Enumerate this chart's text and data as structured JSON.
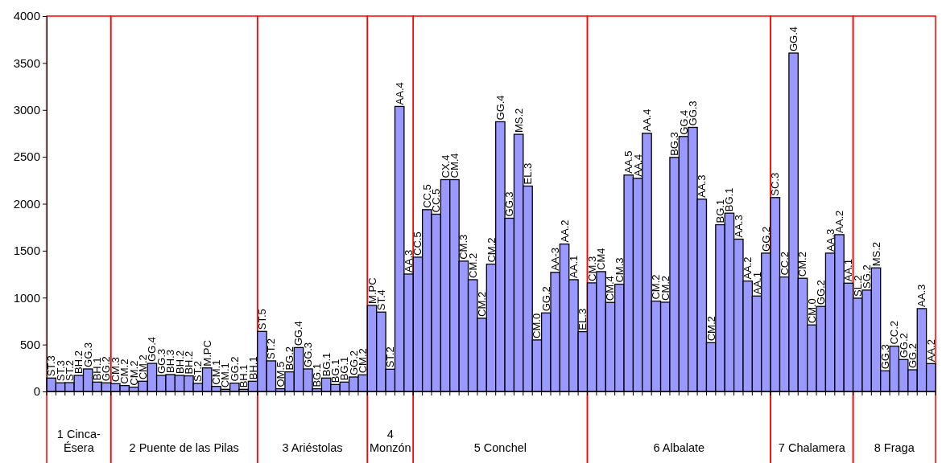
{
  "chart_data": [
    {
      "type": "bar",
      "xlabel": "1 Cinca-Ésera",
      "categories": [
        "ST.3",
        "ST.3",
        "ST.2",
        "BH.2",
        "GG.3",
        "BH.1",
        "GG.2"
      ],
      "values": [
        143,
        92,
        94,
        171,
        240,
        100,
        92
      ],
      "color": "#9999ff",
      "ylim": [
        0,
        4000
      ],
      "yticks": [
        0,
        500,
        1000,
        1500,
        2000,
        2500,
        3000,
        3500,
        4000
      ]
    },
    {
      "type": "bar",
      "xlabel": "2 Puente de las Pilas",
      "categories": [
        "CM.3",
        "CM.2",
        "CM.2",
        "CM.2",
        "GG.4",
        "GG.3",
        "BH.3",
        "BH.2",
        "BH.2",
        "ST.2",
        "M.PC",
        "CM.1",
        "CM.1",
        "GG.2",
        "BH.1",
        "BH.1"
      ],
      "values": [
        83,
        63,
        46,
        109,
        299,
        171,
        180,
        171,
        166,
        86,
        251,
        54,
        23,
        89,
        23,
        109
      ],
      "color": "#9999ff",
      "ylim": [
        0,
        4000
      ],
      "tick_labels": "x"
    },
    {
      "type": "bar",
      "xlabel": "3 Ariéstolas",
      "categories": [
        "ST.5",
        "ST.2",
        "OM.5",
        "BG.2",
        "GG.4",
        "GG.3",
        "BG.1",
        "BG.1",
        "BG.1",
        "BG.1",
        "GG.2",
        "CM.2"
      ],
      "values": [
        640,
        326,
        29,
        209,
        468,
        240,
        29,
        143,
        74,
        100,
        154,
        177
      ],
      "color": "#9999ff",
      "ylim": [
        0,
        4000
      ],
      "tick_labels": "x"
    },
    {
      "type": "bar",
      "xlabel": "4 Monzón",
      "categories": [
        "M.PC",
        "ST.4",
        "ST.2",
        "AA.4",
        "AA.3"
      ],
      "values": [
        917,
        846,
        237,
        3037,
        1251
      ],
      "color": "#9999ff",
      "ylim": [
        0,
        4000
      ],
      "tick_labels": "x"
    },
    {
      "type": "bar",
      "xlabel": "5 Conchel",
      "categories": [
        "CC.5",
        "CC.5",
        "CC.5",
        "CX.4",
        "CM.4",
        "CM.3",
        "CM.2",
        "CM.2",
        "CM.2",
        "GG.4",
        "GG.3",
        "MS.2",
        "EL.3",
        "CM.0",
        "GG.2",
        "AA-3",
        "AA.2",
        "AA.1",
        "EL.3"
      ],
      "values": [
        1431,
        1937,
        1889,
        2257,
        2257,
        1389,
        1191,
        780,
        1357,
        2874,
        1846,
        2740,
        2189,
        549,
        837,
        1269,
        1571,
        1191,
        637
      ],
      "color": "#9999ff",
      "ylim": [
        0,
        4000
      ],
      "tick_labels": "x"
    },
    {
      "type": "bar",
      "xlabel": "6 Albalate",
      "categories": [
        "CM.3",
        "CM4",
        "CM.4",
        "CM.3",
        "AA.5",
        "AA.4",
        "AA.4",
        "CM.2",
        "CM.2",
        "BG.3",
        "GG.4",
        "GG.3",
        "AA.3",
        "CM.2",
        "BG.1",
        "BG.1",
        "AA.3",
        "AA.2",
        "AA.1",
        "GG.2"
      ],
      "values": [
        1157,
        1277,
        949,
        1143,
        2306,
        2271,
        2751,
        963,
        951,
        2494,
        2717,
        2814,
        2049,
        520,
        1777,
        1900,
        1623,
        1177,
        1017,
        1474
      ],
      "color": "#9999ff",
      "ylim": [
        0,
        4000
      ],
      "tick_labels": "x"
    },
    {
      "type": "bar",
      "xlabel": "7 Chalamera",
      "categories": [
        "SC.3",
        "CC.2",
        "GG.4",
        "CM.2",
        "CM.0",
        "GG.2",
        "AA.3",
        "AA.2",
        "AA.1"
      ],
      "values": [
        2066,
        1220,
        3606,
        1206,
        709,
        906,
        1474,
        1671,
        1154
      ],
      "color": "#9999ff",
      "ylim": [
        0,
        4000
      ],
      "tick_labels": "x"
    },
    {
      "type": "bar",
      "xlabel": "8 Fraga",
      "categories": [
        "SL.2",
        "SG.2",
        "MS.2",
        "GG.3",
        "CC.2",
        "GG.2",
        "GG.2",
        "AA.3",
        "AA.2"
      ],
      "values": [
        994,
        1080,
        1317,
        220,
        483,
        340,
        231,
        883,
        297
      ],
      "color": "#9999ff",
      "ylim": [
        0,
        4000
      ],
      "tick_labels": "x"
    }
  ]
}
